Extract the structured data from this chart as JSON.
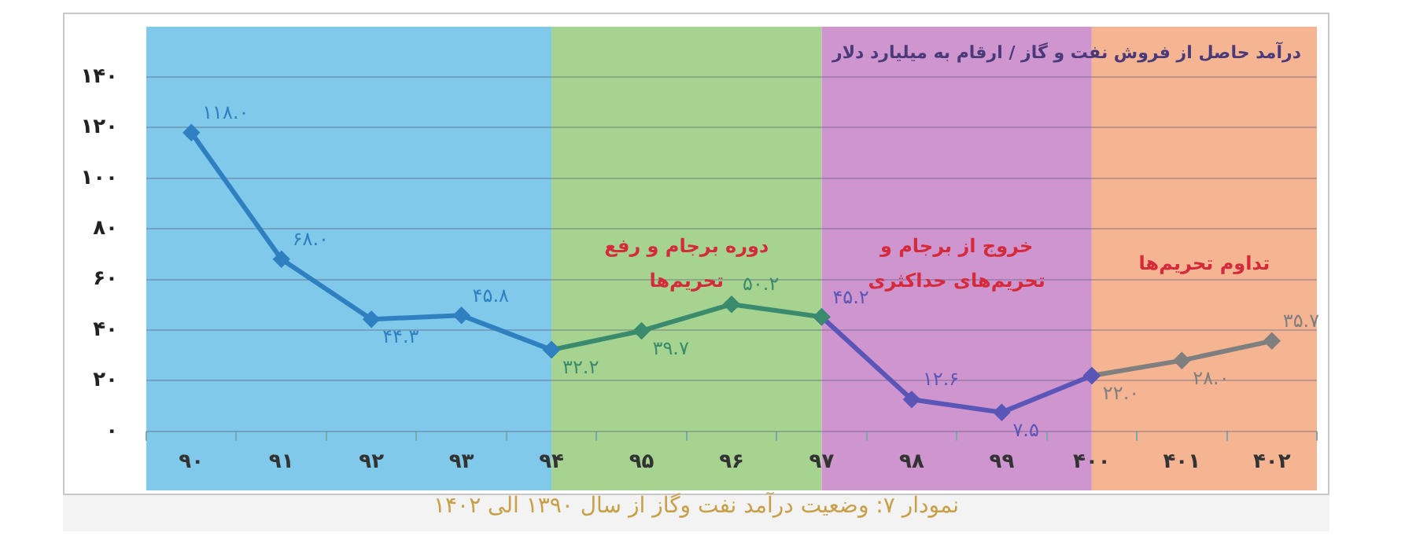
{
  "chart_data": {
    "type": "line",
    "title": "درآمد حاصل از فروش نفت و گاز / ارقام به میلیارد دلار",
    "annotations": [
      "نمودار ۷: وضعیت درآمد نفت وگاز از سال ۱۳۹۰ الی ۱۴۰۲"
    ],
    "categories": [
      "۹۰",
      "۹۱",
      "۹۲",
      "۹۳",
      "۹۴",
      "۹۵",
      "۹۶",
      "۹۷",
      "۹۸",
      "۹۹",
      "۴۰۰",
      "۴۰۱",
      "۴۰۲"
    ],
    "series": [
      {
        "color": "#2f80c0",
        "values": [
          118.0,
          68.0,
          44.3,
          45.8,
          32.2,
          null,
          null,
          null,
          null,
          null,
          null,
          null,
          null
        ],
        "value_labels": [
          "۱۱۸.۰",
          "۶۸.۰",
          "۴۴.۳",
          "۴۵.۸",
          null,
          null,
          null,
          null,
          null,
          null,
          null,
          null,
          null
        ]
      },
      {
        "color": "#3a8a6e",
        "values": [
          null,
          null,
          null,
          null,
          32.2,
          39.7,
          50.2,
          45.2,
          null,
          null,
          null,
          null,
          null
        ],
        "value_labels": [
          null,
          null,
          null,
          null,
          "۳۲.۲",
          "۳۹.۷",
          "۵۰.۲",
          null,
          null,
          null,
          null,
          null,
          null
        ]
      },
      {
        "color": "#5a56b8",
        "values": [
          null,
          null,
          null,
          null,
          null,
          null,
          null,
          45.2,
          12.6,
          7.5,
          22.0,
          null,
          null
        ],
        "value_labels": [
          null,
          null,
          null,
          null,
          null,
          null,
          null,
          "۴۵.۲",
          "۱۲.۶",
          "۷.۵",
          null,
          null,
          null
        ]
      },
      {
        "color": "#7f7f7f",
        "values": [
          null,
          null,
          null,
          null,
          null,
          null,
          null,
          null,
          null,
          null,
          22.0,
          28.0,
          35.7
        ],
        "value_labels": [
          null,
          null,
          null,
          null,
          null,
          null,
          null,
          null,
          null,
          null,
          "۲۲.۰",
          "۲۸.۰",
          "۳۵.۷"
        ]
      }
    ],
    "ylim": [
      0,
      140
    ],
    "yticks": [
      {
        "value": 0,
        "label": "۰"
      },
      {
        "value": 20,
        "label": "۲۰"
      },
      {
        "value": 40,
        "label": "۴۰"
      },
      {
        "value": 60,
        "label": "۶۰"
      },
      {
        "value": 80,
        "label": "۸۰"
      },
      {
        "value": 100,
        "label": "۱۰۰"
      },
      {
        "value": 120,
        "label": "۱۲۰"
      },
      {
        "value": 140,
        "label": "۱۴۰"
      }
    ],
    "bands": [
      {
        "axis": "x",
        "from": "۹۰",
        "to": "۹۴",
        "color": "#80c9ea"
      },
      {
        "axis": "x",
        "from": "۹۴",
        "to": "۹۷",
        "color": "#a6d490",
        "label": "دوره برجام و رفع تحریم‌ها"
      },
      {
        "axis": "x",
        "from": "۹۷",
        "to": "۴۰۰",
        "color": "#cf95cf",
        "label": "خروج از برجام و تحریم‌های حداکثری"
      },
      {
        "axis": "x",
        "from": "۴۰۰",
        "to": "۴۰۲",
        "color": "#f5b593",
        "label": "تداوم تحریم‌ها"
      }
    ],
    "grid": "y",
    "legend": false,
    "marker": "diamond",
    "line_style": "solid"
  }
}
